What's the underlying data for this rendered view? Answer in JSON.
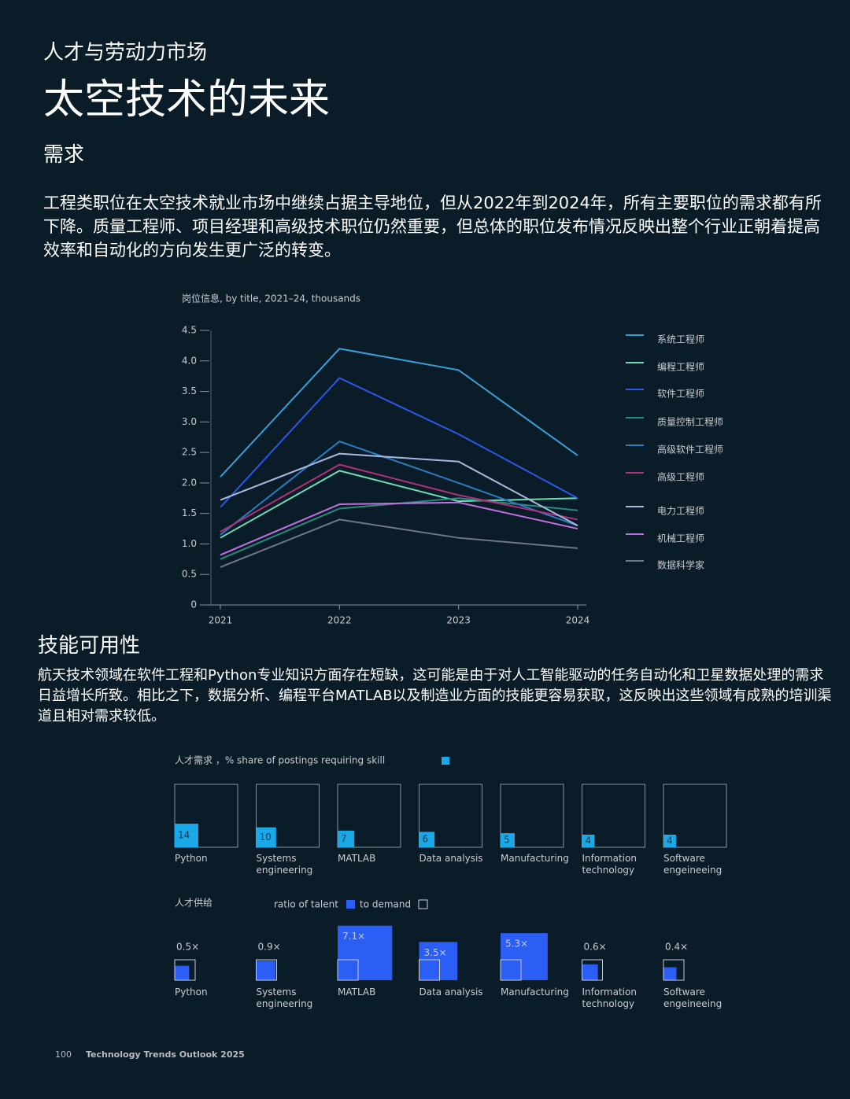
{
  "header": {
    "kicker": "人才与劳动力市场",
    "title": "太空技术的未来"
  },
  "demand_section": {
    "heading": "需求",
    "body": "工程类职位在太空技术就业市场中继续占据主导地位，但从2022年到2024年，所有主要职位的需求都有所下降。质量工程师、项目经理和高级技术职位仍然重要，但总体的职位发布情况反映出整个行业正朝着提高效率和自动化的方向发生更广泛的转变。"
  },
  "skills_section": {
    "heading": "技能可用性",
    "body": "航天技术领域在软件工程和Python专业知识方面存在短缺，这可能是由于对人工智能驱动的任务自动化和卫星数据处理的需求日益增长所致。相比之下，数据分析、编程平台MATLAB以及制造业方面的技能更容易获取，这反映出这些领域有成熟的培训渠道且相对需求较低。"
  },
  "footer": {
    "page": "100",
    "publication": "Technology Trends Outlook 2025"
  },
  "chart_data": [
    {
      "type": "line",
      "title": "岗位信息, by title, 2021–24, thousands",
      "categories": [
        "2021",
        "2022",
        "2023",
        "2024"
      ],
      "ylim": [
        0,
        4.5
      ],
      "yticks": [
        0,
        0.5,
        {
          "value": 1,
          "label": "1.0"
        },
        1.5,
        {
          "value": 2,
          "label": "2.0"
        },
        2.5,
        {
          "value": 3,
          "label": "3.0"
        },
        3.5,
        {
          "value": 4,
          "label": "4.0"
        },
        4.5
      ],
      "series": [
        {
          "name": "系统工程师",
          "color": "#3a9fd8",
          "values": [
            2.1,
            4.2,
            3.85,
            2.45
          ]
        },
        {
          "name": "编程工程师",
          "color": "#6fdcb4",
          "values": [
            1.1,
            2.2,
            1.7,
            1.75
          ]
        },
        {
          "name": "软件工程师",
          "color": "#2a58e8",
          "values": [
            1.6,
            3.72,
            2.8,
            1.75
          ]
        },
        {
          "name": "质量控制工程师",
          "color": "#2a8a78",
          "values": [
            0.75,
            1.58,
            1.75,
            1.55
          ]
        },
        {
          "name": "高级软件工程师",
          "color": "#2a7cc0",
          "values": [
            1.15,
            2.68,
            2.0,
            1.3
          ]
        },
        {
          "name": "高级工程师",
          "color": "#b0307a",
          "values": [
            1.2,
            2.3,
            1.8,
            1.4
          ]
        },
        {
          "name": "电力工程师",
          "color": "#a8b8e0",
          "values": [
            1.72,
            2.48,
            2.35,
            1.3
          ]
        },
        {
          "name": "机械工程师",
          "color": "#c070e0",
          "values": [
            0.82,
            1.65,
            1.68,
            1.25
          ]
        },
        {
          "name": "数据科学家",
          "color": "#6e7880",
          "values": [
            0.62,
            1.4,
            1.1,
            0.93
          ]
        }
      ]
    },
    {
      "type": "square",
      "title": "人才需求 ，% share of postings requiring skill",
      "color": "#1aa8e8",
      "categories": [
        "Python",
        "Systems engineering",
        "MATLAB",
        "Data analysis",
        "Manufacturing",
        "Information technology",
        "Software engeineeing"
      ],
      "values": [
        14,
        10,
        7,
        6,
        5,
        4,
        4
      ]
    },
    {
      "type": "ratio",
      "title": "人才供给",
      "legend_talent": "ratio of talent",
      "legend_demand": "to demand",
      "color": "#2a5ef5",
      "categories": [
        "Python",
        "Systems engineering",
        "MATLAB",
        "Data analysis",
        "Manufacturing",
        "Information technology",
        "Software engeineeing"
      ],
      "values": [
        0.5,
        0.9,
        7.1,
        3.5,
        5.3,
        0.6,
        0.4
      ],
      "value_labels": [
        "0.5×",
        "0.9×",
        "7.1×",
        "3.5×",
        "5.3×",
        "0.6×",
        "0.4×"
      ]
    }
  ]
}
